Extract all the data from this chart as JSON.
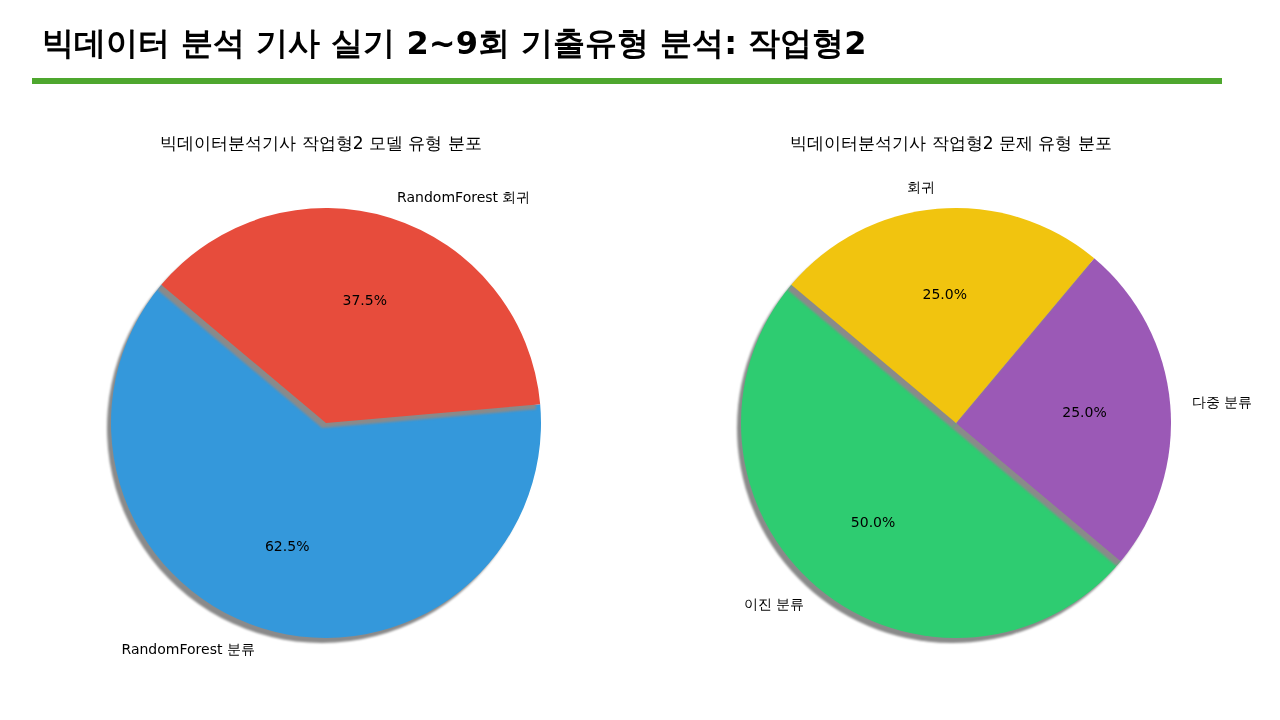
{
  "chart_data": [
    {
      "type": "other",
      "title": "빅데이터 분석 기사 실기 2~9회 기출유형 분석: 작업형2"
    },
    {
      "type": "pie",
      "title": "빅데이터분석기사 작업형2 모델 유형 분포",
      "categories": [
        "RandomForest 분류",
        "RandomForest 회귀"
      ],
      "values": [
        62.5,
        37.5
      ],
      "value_labels": [
        "62.5%",
        "37.5%"
      ],
      "colors": [
        "#3498db",
        "#e74c3c"
      ]
    },
    {
      "type": "pie",
      "title": "빅데이터분석기사 작업형2 문제 유형 분포",
      "categories": [
        "이진 분류",
        "다중 분류",
        "회귀"
      ],
      "values": [
        50,
        25,
        25
      ],
      "value_labels": [
        "50.0%",
        "25.0%",
        "25.0%"
      ],
      "colors": [
        "#2ecc71",
        "#9b59b6",
        "#f1c40f"
      ]
    }
  ]
}
